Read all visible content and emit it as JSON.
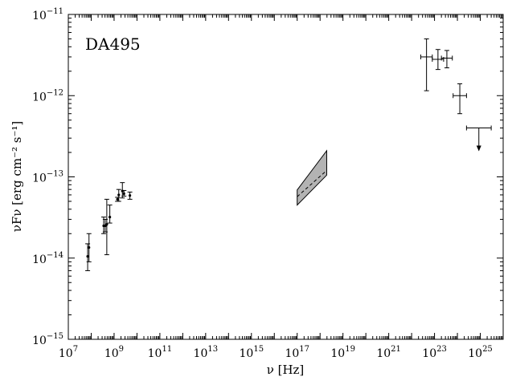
{
  "chart_data": {
    "type": "scatter",
    "title": "DA495",
    "xlabel": "ν [Hz]",
    "ylabel": "νFν [erg cm⁻² s⁻¹]",
    "x_scale": "log",
    "y_scale": "log",
    "xlim": [
      10000000.0,
      1e+26
    ],
    "ylim": [
      1e-15,
      1e-11
    ],
    "x_tick_exponents": [
      7,
      9,
      11,
      13,
      15,
      17,
      19,
      21,
      23,
      25
    ],
    "y_tick_exponents": [
      -15,
      -14,
      -13,
      -12,
      -11
    ],
    "tick_base": "10",
    "grid": false,
    "radio_points": [
      {
        "x": 70000000.0,
        "y": 1.05e-14,
        "y_low": 7e-15,
        "y_high": 1.5e-14
      },
      {
        "x": 80000000.0,
        "y": 1.35e-14,
        "y_low": 9e-15,
        "y_high": 2e-14
      },
      {
        "x": 350000000.0,
        "y": 2.5e-14,
        "y_low": 2e-14,
        "y_high": 3.2e-14
      },
      {
        "x": 410000000.0,
        "y": 2.5e-14,
        "y_low": 2.1e-14,
        "y_high": 3e-14
      },
      {
        "x": 480000000.0,
        "y": 2.6e-14,
        "y_low": 1.1e-14,
        "y_high": 5.3e-14
      },
      {
        "x": 650000000.0,
        "y": 3.2e-14,
        "y_low": 2.7e-14,
        "y_high": 4.5e-14
      },
      {
        "x": 1400000000.0,
        "y": 5.3e-14,
        "y_low": 5e-14,
        "y_high": 5.6e-14
      },
      {
        "x": 1600000000.0,
        "y": 6e-14,
        "y_low": 5e-14,
        "y_high": 7e-14
      },
      {
        "x": 2300000000.0,
        "y": 6.7e-14,
        "y_low": 5.5e-14,
        "y_high": 8.5e-14
      },
      {
        "x": 2700000000.0,
        "y": 6.2e-14,
        "y_low": 5.8e-14,
        "y_high": 6.8e-14
      },
      {
        "x": 4900000000.0,
        "y": 5.9e-14,
        "y_low": 5.3e-14,
        "y_high": 6.5e-14
      }
    ],
    "xray_band": {
      "x": [
        1e+17,
        1.95e+18
      ],
      "upper": [
        6.9e-14,
        2.1e-13
      ],
      "lower": [
        4.5e-14,
        1.05e-13
      ],
      "mid": [
        5.7e-14,
        1.2e-13
      ]
    },
    "gamma_points": [
      {
        "x_low": 2.5e+22,
        "x_high": 8e+22,
        "y": 3e-12,
        "y_low": 1.15e-12,
        "y_high": 5e-12
      },
      {
        "x_low": 8e+22,
        "x_high": 2.5e+23,
        "y": 2.8e-12,
        "y_low": 2.1e-12,
        "y_high": 3.7e-12
      },
      {
        "x_low": 2e+23,
        "x_high": 6e+23,
        "y": 2.9e-12,
        "y_low": 2.2e-12,
        "y_high": 3.6e-12
      },
      {
        "x_low": 6.5e+23,
        "x_high": 2.5e+24,
        "y": 1e-12,
        "y_low": 6e-13,
        "y_high": 1.4e-12
      },
      {
        "x_low": 2.5e+24,
        "x_high": 3e+25,
        "y": 4e-13,
        "upper_limit": true
      }
    ]
  }
}
